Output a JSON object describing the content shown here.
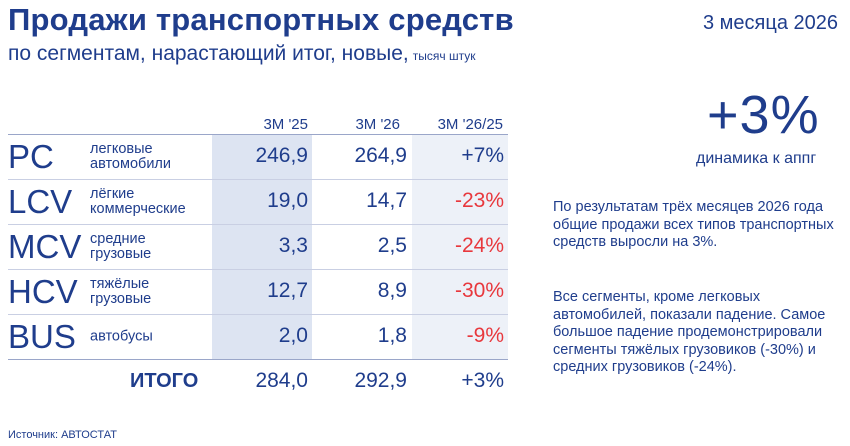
{
  "header": {
    "title": "Продажи транспортных средств",
    "subtitle": "по сегментам, нарастающий итог, новые,",
    "units": "тысяч штук",
    "period": "3 месяца 2026"
  },
  "table": {
    "columns": [
      "3M '25",
      "3M '26",
      "3M '26/25"
    ],
    "rows": [
      {
        "code": "PC",
        "name": "легковые\nавтомобили",
        "v25": "246,9",
        "v26": "264,9",
        "change": "+7%",
        "change_sign": "positive"
      },
      {
        "code": "LCV",
        "name": "лёгкие\nкоммерческие",
        "v25": "19,0",
        "v26": "14,7",
        "change": "-23%",
        "change_sign": "negative"
      },
      {
        "code": "MCV",
        "name": "средние\nгрузовые",
        "v25": "3,3",
        "v26": "2,5",
        "change": "-24%",
        "change_sign": "negative"
      },
      {
        "code": "HCV",
        "name": "тяжёлые\nгрузовые",
        "v25": "12,7",
        "v26": "8,9",
        "change": "-30%",
        "change_sign": "negative"
      },
      {
        "code": "BUS",
        "name": "автобусы",
        "v25": "2,0",
        "v26": "1,8",
        "change": "-9%",
        "change_sign": "negative"
      }
    ],
    "total": {
      "label": "ИТОГО",
      "v25": "284,0",
      "v26": "292,9",
      "change": "+3%"
    }
  },
  "highlight": {
    "value": "+3%",
    "caption": "динамика к аппг"
  },
  "commentary": {
    "p1": "По результатам трёх месяцев 2026 года общие продажи всех типов транспортных средств выросли на 3%.",
    "p2": "Все сегменты, кроме легковых автомобилей, показали падение. Самое большое падение продемонстрировали сегменты тяжёлых грузовиков (-30%) и средних грузовиков (-24%)."
  },
  "source": "Источник: АВТОСТАТ",
  "colors": {
    "primary": "#1f3d8c",
    "negative": "#e8383d",
    "band_dark": "#dde4f2",
    "band_light": "#edf1f8"
  }
}
